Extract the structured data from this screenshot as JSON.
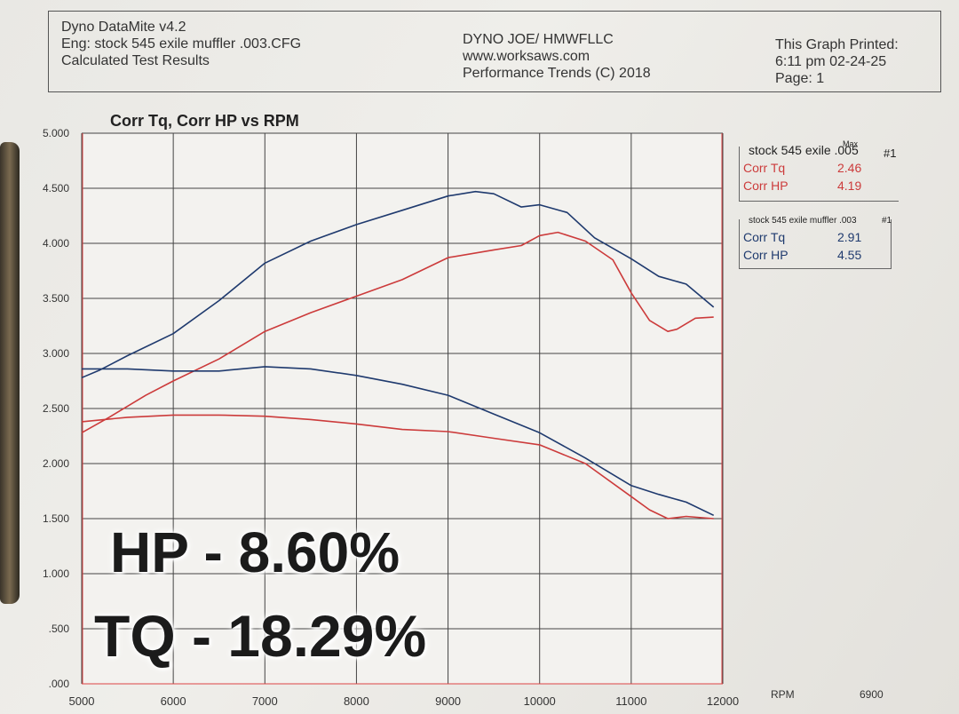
{
  "header": {
    "left_lines": [
      "Dyno DataMite v4.2",
      "Eng: stock 545 exile muffler .003.CFG",
      "Calculated Test Results"
    ],
    "center_lines": [
      "DYNO JOE/ HMWFLLC",
      "www.worksaws.com",
      "Performance Trends (C) 2018"
    ],
    "right_lines": [
      "This Graph Printed:",
      "6:11 pm 02-24-25",
      "Page: 1"
    ]
  },
  "legends": [
    {
      "name": "stock 545 exile .005",
      "max_label": "Max",
      "run": "#1",
      "color": "#cc3b3b",
      "rows": [
        {
          "label": "Corr Tq",
          "value": "2.46"
        },
        {
          "label": "Corr HP",
          "value": "4.19"
        }
      ]
    },
    {
      "name": "stock 545 exile muffler .003",
      "run": "#1",
      "color": "#1f3a6e",
      "rows": [
        {
          "label": "Corr Tq",
          "value": "2.91"
        },
        {
          "label": "Corr HP",
          "value": "4.55"
        }
      ]
    }
  ],
  "overlay": {
    "line1": "HP - 8.60%",
    "line2": "TQ - 18.29%"
  },
  "chart_data": {
    "type": "line",
    "title": "Corr Tq, Corr HP vs RPM",
    "xlabel": "RPM",
    "x_extra_label": "6900",
    "xlim": [
      5000,
      12000
    ],
    "ylim": [
      0,
      5
    ],
    "x_ticks": [
      "5000",
      "6000",
      "7000",
      "8000",
      "9000",
      "10000",
      "11000",
      "12000"
    ],
    "y_ticks": [
      ".000",
      ".500",
      "1.000",
      "1.500",
      "2.000",
      "2.500",
      "3.000",
      "3.500",
      "4.000",
      "4.500",
      "5.000"
    ],
    "grid": true,
    "series": [
      {
        "name": "Corr HP",
        "run": "stock 545 exile muffler .003",
        "color": "#1f3a6e",
        "x": [
          5000,
          5200,
          5500,
          6000,
          6500,
          7000,
          7500,
          8000,
          8500,
          9000,
          9300,
          9500,
          9800,
          10000,
          10300,
          10600,
          11000,
          11300,
          11600,
          11900
        ],
        "y": [
          2.78,
          2.85,
          2.98,
          3.18,
          3.48,
          3.82,
          4.02,
          4.17,
          4.3,
          4.43,
          4.47,
          4.45,
          4.33,
          4.35,
          4.28,
          4.05,
          3.86,
          3.7,
          3.63,
          3.42
        ]
      },
      {
        "name": "Corr HP",
        "run": "stock 545 exile .005",
        "color": "#cc3b3b",
        "x": [
          5000,
          5300,
          5700,
          6000,
          6500,
          7000,
          7500,
          8000,
          8500,
          9000,
          9500,
          9800,
          10000,
          10200,
          10500,
          10800,
          11000,
          11200,
          11400,
          11500,
          11700,
          11900
        ],
        "y": [
          2.28,
          2.42,
          2.62,
          2.75,
          2.95,
          3.2,
          3.37,
          3.52,
          3.67,
          3.87,
          3.94,
          3.98,
          4.07,
          4.1,
          4.02,
          3.85,
          3.55,
          3.3,
          3.2,
          3.22,
          3.32,
          3.33
        ]
      },
      {
        "name": "Corr Tq",
        "run": "stock 545 exile muffler .003",
        "color": "#1f3a6e",
        "x": [
          5000,
          5500,
          6000,
          6500,
          7000,
          7500,
          8000,
          8500,
          9000,
          9500,
          10000,
          10500,
          11000,
          11300,
          11600,
          11900
        ],
        "y": [
          2.86,
          2.86,
          2.84,
          2.84,
          2.88,
          2.86,
          2.8,
          2.72,
          2.62,
          2.45,
          2.28,
          2.05,
          1.8,
          1.72,
          1.65,
          1.53
        ]
      },
      {
        "name": "Corr Tq",
        "run": "stock 545 exile .005",
        "color": "#cc3b3b",
        "x": [
          5000,
          5500,
          6000,
          6500,
          7000,
          7500,
          8000,
          8500,
          9000,
          9500,
          10000,
          10500,
          11000,
          11200,
          11400,
          11600,
          11900
        ],
        "y": [
          2.38,
          2.42,
          2.44,
          2.44,
          2.43,
          2.4,
          2.36,
          2.31,
          2.29,
          2.23,
          2.17,
          2.0,
          1.7,
          1.58,
          1.5,
          1.52,
          1.5
        ]
      }
    ]
  }
}
